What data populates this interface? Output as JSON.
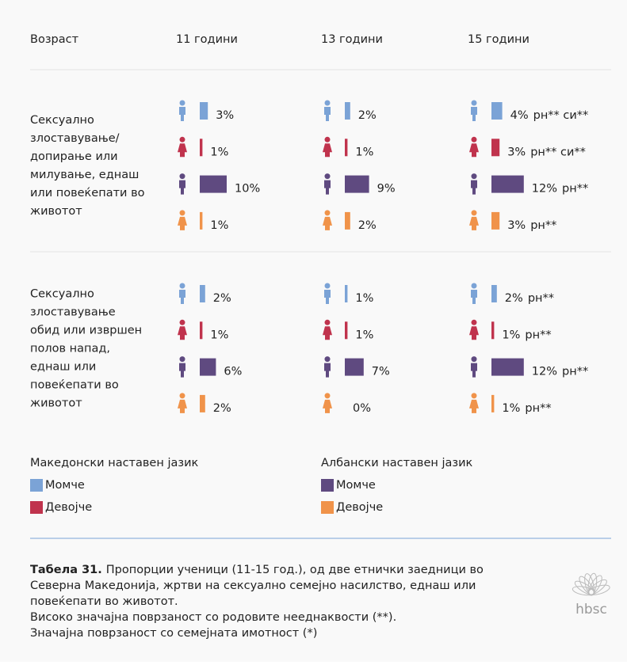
{
  "header": [
    "Возраст",
    "11 години",
    "13 години",
    "15 години"
  ],
  "sections": [
    {
      "label_lines": [
        "Сексуално",
        "злоставување/",
        "допирање или",
        "милување, еднаш",
        "или повеќепати во",
        "животот"
      ],
      "rows": [
        [
          {
            "value": 3,
            "label": "3%"
          },
          {
            "value": 2,
            "label": "2%"
          },
          {
            "value": 4,
            "label": "4%",
            "sig": "рн** си**"
          }
        ],
        [
          {
            "value": 1,
            "label": "1%"
          },
          {
            "value": 1,
            "label": "1%"
          },
          {
            "value": 3,
            "label": "3%",
            "sig": "рн** си**"
          }
        ],
        [
          {
            "value": 10,
            "label": "10%"
          },
          {
            "value": 9,
            "label": "9%"
          },
          {
            "value": 12,
            "label": "12%",
            "sig": "рн**"
          }
        ],
        [
          {
            "value": 1,
            "label": "1%"
          },
          {
            "value": 2,
            "label": "2%"
          },
          {
            "value": 3,
            "label": "3%",
            "sig": "рн**"
          }
        ]
      ]
    },
    {
      "label_lines": [
        "Сексуално",
        "злоставување",
        "обид или извршен",
        "полов напад,",
        "еднаш или",
        "повеќепати во",
        "животот"
      ],
      "rows": [
        [
          {
            "value": 2,
            "label": "2%"
          },
          {
            "value": 1,
            "label": "1%"
          },
          {
            "value": 2,
            "label": "2%",
            "sig": "рн**"
          }
        ],
        [
          {
            "value": 1,
            "label": "1%"
          },
          {
            "value": 1,
            "label": "1%"
          },
          {
            "value": 1,
            "label": "1%",
            "sig": "рн**"
          }
        ],
        [
          {
            "value": 6,
            "label": "6%"
          },
          {
            "value": 7,
            "label": "7%"
          },
          {
            "value": 12,
            "label": "12%",
            "sig": "рн**"
          }
        ],
        [
          {
            "value": 2,
            "label": "2%"
          },
          {
            "value": 0,
            "label": "0%"
          },
          {
            "value": 1,
            "label": "1%",
            "sig": "рн**"
          }
        ]
      ]
    }
  ],
  "legend": {
    "groups": [
      {
        "title": "Македонски наставен јазик",
        "items": [
          {
            "name": "Момче",
            "color": "#7ba3d6"
          },
          {
            "name": "Девојче",
            "color": "#c0334d"
          }
        ]
      },
      {
        "title": "Албански наставен јазик",
        "items": [
          {
            "name": "Момче",
            "color": "#5f4a80"
          },
          {
            "name": "Девојче",
            "color": "#f0934a"
          }
        ]
      }
    ]
  },
  "caption": {
    "bold": "Табела 31.",
    "lines": [
      "Пропорции ученици (11-15 год.), од две етнички заедници во",
      "Северна Македонија, жртви на сексуално семејно насилство, еднаш или",
      "повеќепати во животот.",
      "Високо значајна поврзаност со родовите нееднаквости (**).",
      "Значајна поврзаност со семејната имотност (*)"
    ]
  },
  "logo": "hbsc"
}
